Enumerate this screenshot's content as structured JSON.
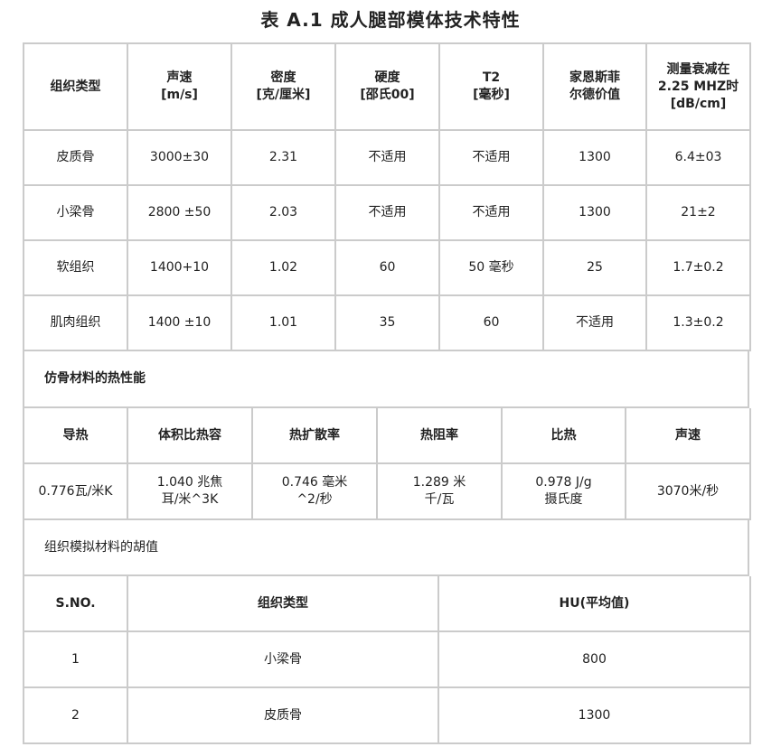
{
  "title": "表 A.1   成人腿部模体技术特性",
  "table1": {
    "headers": [
      "组织类型",
      "声速\n[m/s]",
      "密度\n[克/厘米]",
      "硬度\n[邵氏00]",
      "T2\n[毫秒]",
      "家恩斯菲\n尔德价值",
      "测量衰减在\n2.25 MHZ时\n[dB/cm]"
    ],
    "rows": [
      [
        "皮质骨",
        "3000±30",
        "2.31",
        "不适用",
        "不适用",
        "1300",
        "6.4±03"
      ],
      [
        "小梁骨",
        "2800 ±50",
        "2.03",
        "不适用",
        "不适用",
        "1300",
        "21±2"
      ],
      [
        "软组织",
        "1400+10",
        "1.02",
        "60",
        "50 毫秒",
        "25",
        "1.7±0.2"
      ],
      [
        "肌肉组织",
        "1400 ±10",
        "1.01",
        "35",
        "60",
        "不适用",
        "1.3±0.2"
      ]
    ]
  },
  "section2_title": "仿骨材料的热性能",
  "table2": {
    "headers": [
      "导热",
      "体积比热容",
      "热扩散率",
      "热阻率",
      "比热",
      "声速"
    ],
    "rows": [
      [
        "0.776瓦/米K",
        "1.040 兆焦\n耳/米^3K",
        "0.746 毫米\n^2/秒",
        "1.289 米\n千/瓦",
        "0.978 J/g\n摄氏度",
        "3070米/秒"
      ]
    ]
  },
  "section3_title": "组织模拟材料的胡值",
  "table3": {
    "headers": [
      "S.NO.",
      "组织类型",
      "HU(平均值)"
    ],
    "rows": [
      [
        "1",
        "小梁骨",
        "800"
      ],
      [
        "2",
        "皮质骨",
        "1300"
      ]
    ]
  }
}
